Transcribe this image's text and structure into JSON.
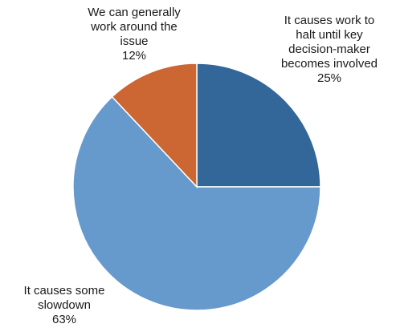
{
  "chart_data": {
    "type": "pie",
    "title": "",
    "slices": [
      {
        "label_lines": [
          "It causes work to",
          "halt until key",
          "decision-maker",
          "becomes involved"
        ],
        "value": 25,
        "value_label": "25%",
        "color": "#336699"
      },
      {
        "label_lines": [
          "It causes some",
          "slowdown"
        ],
        "value": 63,
        "value_label": "63%",
        "color": "#6699cc"
      },
      {
        "label_lines": [
          "We can generally",
          "work around the",
          "issue"
        ],
        "value": 12,
        "value_label": "12%",
        "color": "#cc6633"
      }
    ],
    "start_angle_deg": 0,
    "direction": "clockwise",
    "legend": "none"
  }
}
